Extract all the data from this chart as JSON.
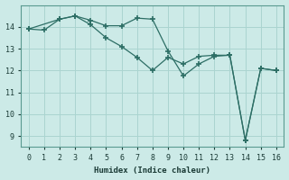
{
  "xlabel": "Humidex (Indice chaleur)",
  "bg_color": "#cceae7",
  "grid_color": "#aad4d0",
  "line_color": "#2d6e65",
  "xlim": [
    -0.5,
    16.5
  ],
  "ylim": [
    8.5,
    15.0
  ],
  "xticks": [
    0,
    1,
    2,
    3,
    4,
    5,
    6,
    7,
    8,
    9,
    10,
    11,
    12,
    13,
    14,
    15,
    16
  ],
  "yticks": [
    9,
    10,
    11,
    12,
    13,
    14
  ],
  "line1_x": [
    0,
    1,
    2,
    3,
    4,
    5,
    6,
    7,
    8,
    9,
    10,
    11,
    12,
    13,
    14,
    15,
    16
  ],
  "line1_y": [
    13.9,
    13.85,
    14.35,
    14.5,
    14.3,
    14.05,
    14.05,
    14.4,
    14.35,
    12.9,
    11.75,
    12.3,
    12.65,
    12.7,
    8.8,
    12.1,
    12.0
  ],
  "line2_x": [
    0,
    2,
    3,
    4,
    5,
    6,
    7,
    8,
    9,
    10,
    11,
    12,
    13,
    14,
    15,
    16
  ],
  "line2_y": [
    13.9,
    14.35,
    14.5,
    14.1,
    13.5,
    13.1,
    12.6,
    12.0,
    12.6,
    12.3,
    12.65,
    12.7,
    12.7,
    8.8,
    12.1,
    12.0
  ]
}
